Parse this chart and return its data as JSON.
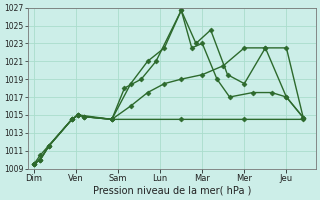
{
  "xlabel": "Pression niveau de la mer( hPa )",
  "background_color": "#cceee8",
  "grid_color": "#aaddcc",
  "line_color": "#2d6a2d",
  "ylim": [
    1009,
    1027
  ],
  "yticks": [
    1009,
    1011,
    1013,
    1015,
    1017,
    1019,
    1021,
    1023,
    1025,
    1027
  ],
  "day_labels": [
    "Dim",
    "Ven",
    "Sam",
    "Lun",
    "Mar",
    "Mer",
    "Jeu"
  ],
  "day_positions": [
    0,
    1,
    2,
    3,
    4,
    5,
    6
  ],
  "lines": [
    {
      "x": [
        0.0,
        0.15,
        0.35,
        0.9,
        1.05,
        1.2,
        1.85,
        2.15,
        2.55,
        2.9,
        3.5,
        3.75,
        4.0,
        4.35,
        4.65,
        5.2,
        5.65,
        6.0,
        6.4
      ],
      "y": [
        1009.5,
        1010.0,
        1011.5,
        1014.5,
        1015.0,
        1014.8,
        1014.5,
        1018.0,
        1019.0,
        1021.0,
        1026.7,
        1022.5,
        1023.0,
        1019.0,
        1017.0,
        1017.5,
        1017.5,
        1017.0,
        1014.7
      ]
    },
    {
      "x": [
        0.0,
        0.15,
        0.35,
        0.9,
        1.05,
        1.2,
        1.85,
        2.3,
        2.7,
        3.1,
        3.5,
        3.85,
        4.2,
        4.6,
        5.0,
        5.5,
        6.0,
        6.4
      ],
      "y": [
        1009.5,
        1010.0,
        1011.5,
        1014.5,
        1015.0,
        1014.8,
        1014.5,
        1018.5,
        1021.0,
        1022.5,
        1026.7,
        1023.0,
        1024.5,
        1019.5,
        1018.5,
        1022.5,
        1017.0,
        1014.7
      ]
    },
    {
      "x": [
        0.0,
        0.15,
        0.9,
        1.05,
        1.85,
        3.5,
        5.0,
        6.4
      ],
      "y": [
        1009.5,
        1010.5,
        1014.5,
        1015.0,
        1014.5,
        1014.5,
        1014.5,
        1014.5
      ]
    },
    {
      "x": [
        0.0,
        0.15,
        0.35,
        0.9,
        1.05,
        1.2,
        1.85,
        2.3,
        2.7,
        3.1,
        3.5,
        4.0,
        4.5,
        5.0,
        5.5,
        6.0,
        6.4
      ],
      "y": [
        1009.5,
        1010.0,
        1011.5,
        1014.5,
        1015.0,
        1014.8,
        1014.5,
        1016.0,
        1017.5,
        1018.5,
        1019.0,
        1019.5,
        1020.5,
        1022.5,
        1022.5,
        1022.5,
        1014.7
      ]
    }
  ]
}
